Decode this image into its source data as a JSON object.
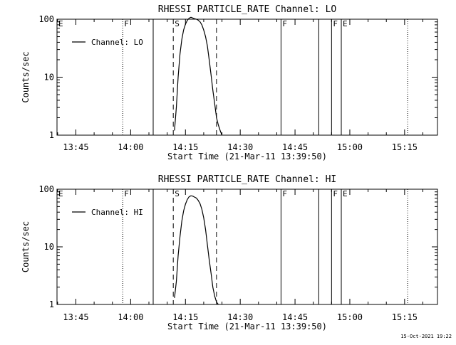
{
  "chart_data": [
    {
      "type": "line",
      "title": "RHESSI PARTICLE_RATE Channel: LO",
      "xlabel": "Start Time (21-Mar-11 13:39:50)",
      "ylabel": "Counts/sec",
      "y_scale": "log",
      "ylim": [
        1,
        100
      ],
      "y_ticks": [
        {
          "v": 1,
          "label": "1"
        },
        {
          "v": 10,
          "label": "10"
        },
        {
          "v": 100,
          "label": "100"
        }
      ],
      "xlim": [
        "13:39:50",
        "15:24:00"
      ],
      "x_ticks": [
        "13:45",
        "14:00",
        "14:15",
        "14:30",
        "14:45",
        "15:00",
        "15:15"
      ],
      "legend": {
        "position": "top-left",
        "entries": [
          "Channel: LO"
        ]
      },
      "series": [
        {
          "name": "Channel: LO",
          "x": [
            "14:12:00",
            "14:12:30",
            "14:13:00",
            "14:13:30",
            "14:14:00",
            "14:14:30",
            "14:15:00",
            "14:15:30",
            "14:16:00",
            "14:16:30",
            "14:17:00",
            "14:17:30",
            "14:18:00",
            "14:18:30",
            "14:19:00",
            "14:19:30",
            "14:20:00",
            "14:20:30",
            "14:21:00",
            "14:21:30",
            "14:22:00",
            "14:22:30",
            "14:23:00",
            "14:23:30",
            "14:24:00",
            "14:24:30",
            "14:25:00"
          ],
          "y": [
            1.2,
            3,
            10,
            25,
            45,
            65,
            82,
            95,
            104,
            108,
            105,
            102,
            100,
            96,
            90,
            80,
            65,
            50,
            35,
            20,
            11,
            6,
            3.5,
            2,
            1.5,
            1.2,
            1
          ]
        }
      ],
      "markers": {
        "solid": [
          "14:06:10",
          "14:41:10",
          "14:51:30",
          "14:55:00",
          "14:57:40"
        ],
        "dotted": [
          "13:57:50",
          "15:15:50"
        ],
        "dashed": [
          "14:11:40",
          "14:23:30"
        ],
        "labels": [
          {
            "t": "13:39:50",
            "text": "E"
          },
          {
            "t": "13:57:50",
            "text": "F"
          },
          {
            "t": "14:11:40",
            "text": "S"
          },
          {
            "t": "14:41:10",
            "text": "F"
          },
          {
            "t": "14:55:00",
            "text": "F"
          },
          {
            "t": "14:57:40",
            "text": "E"
          }
        ]
      }
    },
    {
      "type": "line",
      "title": "RHESSI PARTICLE_RATE Channel: HI",
      "xlabel": "Start Time (21-Mar-11 13:39:50)",
      "ylabel": "Counts/sec",
      "y_scale": "log",
      "ylim": [
        1,
        100
      ],
      "y_ticks": [
        {
          "v": 1,
          "label": "1"
        },
        {
          "v": 10,
          "label": "10"
        },
        {
          "v": 100,
          "label": "100"
        }
      ],
      "xlim": [
        "13:39:50",
        "15:24:00"
      ],
      "x_ticks": [
        "13:45",
        "14:00",
        "14:15",
        "14:30",
        "14:45",
        "15:00",
        "15:15"
      ],
      "legend": {
        "position": "top-left",
        "entries": [
          "Channel: HI"
        ]
      },
      "series": [
        {
          "name": "Channel: HI",
          "x": [
            "14:12:00",
            "14:12:30",
            "14:13:00",
            "14:13:30",
            "14:14:00",
            "14:14:30",
            "14:15:00",
            "14:15:30",
            "14:16:00",
            "14:16:30",
            "14:17:00",
            "14:17:30",
            "14:18:00",
            "14:18:30",
            "14:19:00",
            "14:19:30",
            "14:20:00",
            "14:20:30",
            "14:21:00",
            "14:21:30",
            "14:22:00",
            "14:22:30",
            "14:23:00",
            "14:23:30",
            "14:24:00"
          ],
          "y": [
            1.3,
            2.5,
            7,
            15,
            28,
            42,
            55,
            66,
            74,
            77,
            76,
            73,
            70,
            64,
            56,
            45,
            32,
            20,
            11,
            6,
            3.5,
            2,
            1.4,
            1.1,
            1
          ]
        }
      ],
      "markers": {
        "solid": [
          "14:06:10",
          "14:41:10",
          "14:51:30",
          "14:55:00",
          "14:57:40"
        ],
        "dotted": [
          "13:57:50",
          "15:15:50"
        ],
        "dashed": [
          "14:11:40",
          "14:23:30"
        ],
        "labels": [
          {
            "t": "13:39:50",
            "text": "E"
          },
          {
            "t": "13:57:50",
            "text": "F"
          },
          {
            "t": "14:11:40",
            "text": "S"
          },
          {
            "t": "14:41:10",
            "text": "F"
          },
          {
            "t": "14:55:00",
            "text": "F"
          },
          {
            "t": "14:57:40",
            "text": "E"
          }
        ]
      }
    }
  ],
  "footer": {
    "timestamp": "15-Oct-2021 19:22"
  }
}
